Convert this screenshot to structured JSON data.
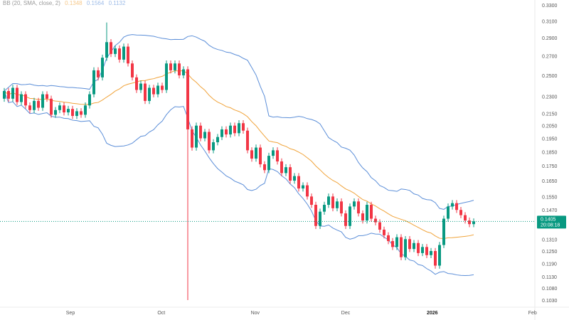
{
  "chart_data": {
    "type": "candlestick",
    "scale": "log",
    "grid": false,
    "ylim": [
      0.103,
      0.33
    ],
    "indicator": {
      "label": "BB (20, SMA, close, 2)",
      "basis_value": "0.1348",
      "upper_value": "0.1564",
      "lower_value": "0.1132",
      "basis_color": "#f0a33a",
      "band_color": "#5b8ed8"
    },
    "y_ticks": [
      "0.3300",
      "0.3100",
      "0.2900",
      "0.2700",
      "0.2500",
      "0.2300",
      "0.2150",
      "0.2050",
      "0.1950",
      "0.1850",
      "0.1750",
      "0.1650",
      "0.1550",
      "0.1470",
      "0.1310",
      "0.1250",
      "0.1190",
      "0.1130",
      "0.1080",
      "0.1030"
    ],
    "x_ticks": [
      {
        "label": "Sep",
        "index": 15.5
      },
      {
        "label": "Oct",
        "index": 36.8
      },
      {
        "label": "Nov",
        "index": 58.8
      },
      {
        "label": "Dec",
        "index": 80
      },
      {
        "label": "2026",
        "index": 100.3,
        "bold": true
      },
      {
        "label": "Feb",
        "index": 123.8
      }
    ],
    "closes": [
      0.235,
      0.228,
      0.238,
      0.225,
      0.232,
      0.222,
      0.218,
      0.226,
      0.22,
      0.232,
      0.228,
      0.214,
      0.218,
      0.222,
      0.216,
      0.219,
      0.213,
      0.217,
      0.214,
      0.222,
      0.232,
      0.255,
      0.248,
      0.268,
      0.285,
      0.272,
      0.278,
      0.266,
      0.28,
      0.262,
      0.248,
      0.236,
      0.242,
      0.226,
      0.238,
      0.232,
      0.24,
      0.236,
      0.262,
      0.255,
      0.262,
      0.25,
      0.256,
      0.202,
      0.188,
      0.205,
      0.195,
      0.2,
      0.186,
      0.192,
      0.196,
      0.202,
      0.198,
      0.205,
      0.199,
      0.207,
      0.201,
      0.186,
      0.18,
      0.188,
      0.176,
      0.172,
      0.182,
      0.186,
      0.178,
      0.17,
      0.174,
      0.165,
      0.168,
      0.16,
      0.162,
      0.155,
      0.15,
      0.138,
      0.146,
      0.15,
      0.155,
      0.148,
      0.152,
      0.145,
      0.138,
      0.149,
      0.152,
      0.145,
      0.141,
      0.15,
      0.142,
      0.14,
      0.136,
      0.133,
      0.13,
      0.127,
      0.132,
      0.122,
      0.131,
      0.126,
      0.129,
      0.124,
      0.127,
      0.123,
      0.125,
      0.118,
      0.128,
      0.142,
      0.149,
      0.151,
      0.147,
      0.144,
      0.141,
      0.139,
      0.1405
    ],
    "first_open": 0.228,
    "wick_lows": {
      "43": 0.103
    },
    "wick_highs": {
      "24": 0.308
    },
    "current_price": {
      "value": "0.1405",
      "countdown": "20:08:18",
      "color": "#089981"
    },
    "up_color": "#089981",
    "down_color": "#f23645"
  }
}
